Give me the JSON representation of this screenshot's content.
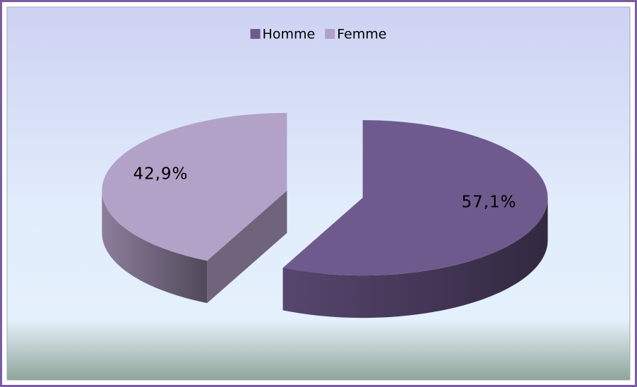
{
  "chart_data": {
    "type": "pie",
    "categories": [
      "Homme",
      "Femme"
    ],
    "values": [
      57.1,
      42.9
    ],
    "value_labels": [
      "57,1%",
      "42,9%"
    ],
    "colors": [
      "#6f5a8e",
      "#b3a2c7"
    ],
    "legend": "top",
    "three_d": true,
    "exploded": true
  }
}
